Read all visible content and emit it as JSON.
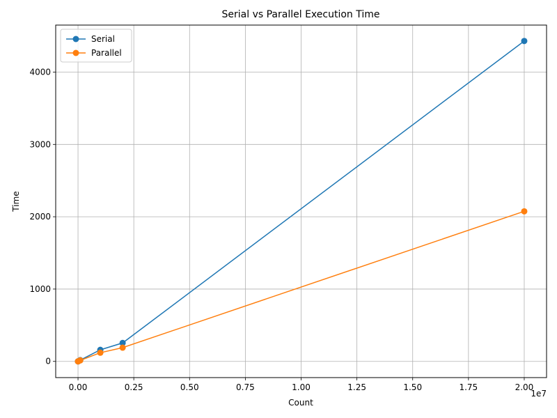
{
  "chart_data": {
    "type": "line",
    "title": "Serial vs Parallel Execution Time",
    "xlabel": "Count",
    "ylabel": "Time",
    "x_offset_label": "1e7",
    "xlim": [
      -1000000,
      21000000
    ],
    "ylim": [
      -224,
      4650
    ],
    "xticks": [
      0,
      2500000,
      5000000,
      7500000,
      10000000,
      12500000,
      15000000,
      17500000,
      20000000
    ],
    "xtick_labels": [
      "0.00",
      "0.25",
      "0.50",
      "0.75",
      "1.00",
      "1.25",
      "1.50",
      "1.75",
      "2.00"
    ],
    "yticks": [
      0,
      1000,
      2000,
      3000,
      4000
    ],
    "ytick_labels": [
      "0",
      "1000",
      "2000",
      "3000",
      "4000"
    ],
    "grid": true,
    "legend_position": "top-left",
    "x": [
      100,
      1000,
      10000,
      100000,
      1000000,
      2000000,
      20000000
    ],
    "series": [
      {
        "name": "Serial",
        "color": "#1f77b4",
        "values": [
          0,
          0.2,
          2,
          18,
          160,
          255,
          4430
        ]
      },
      {
        "name": "Parallel",
        "color": "#ff7f0e",
        "values": [
          0,
          0.2,
          1.5,
          14,
          120,
          190,
          2075
        ]
      }
    ]
  }
}
